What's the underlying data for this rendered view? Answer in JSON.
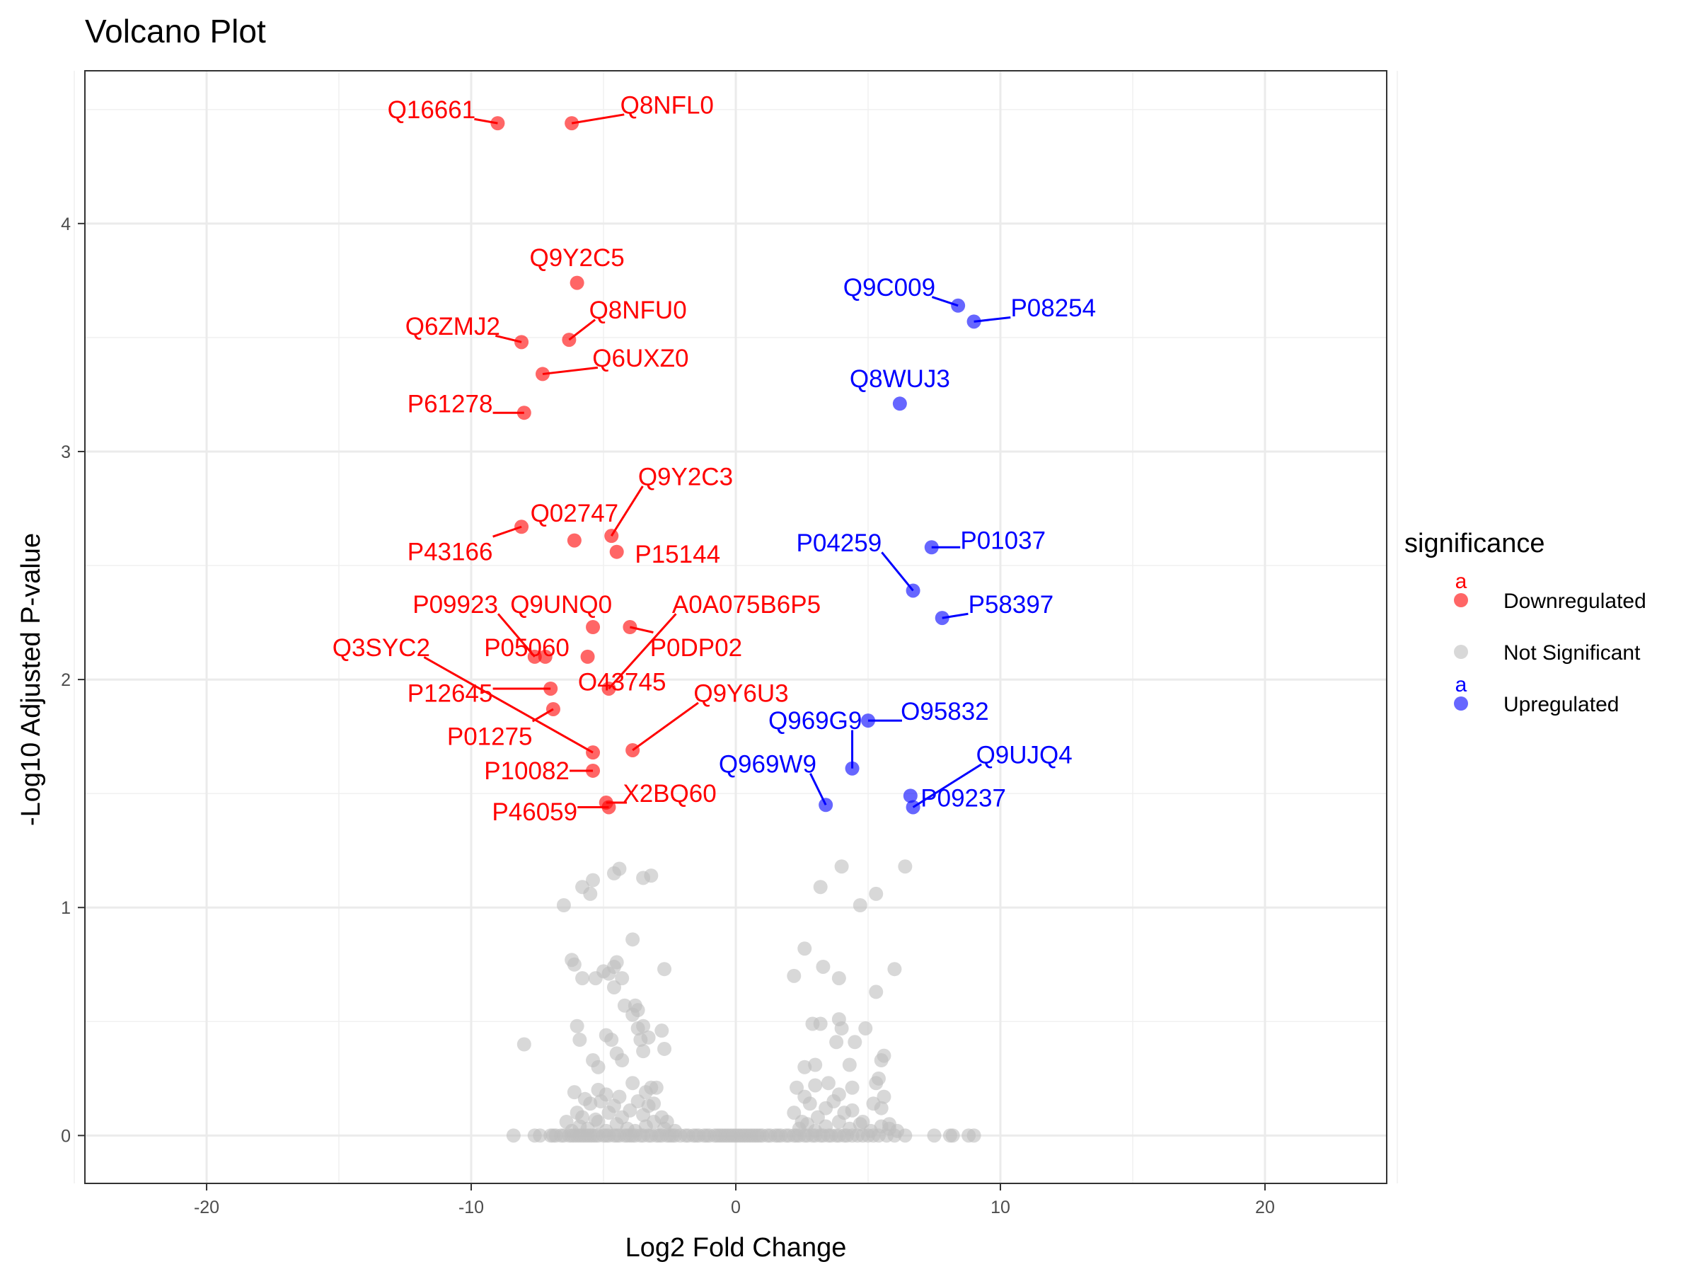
{
  "chart_data": {
    "type": "scatter",
    "title": "Volcano Plot",
    "xlabel": "Log2 Fold Change",
    "ylabel": "-Log10 Adjusted P-value",
    "xlim": [
      -24.6,
      24.6
    ],
    "ylim": [
      -0.21,
      4.67
    ],
    "x_ticks": [
      -20,
      -10,
      0,
      10,
      20
    ],
    "x_tick_labels": [
      "-20",
      "-10",
      "0",
      "10",
      "20"
    ],
    "y_ticks": [
      0,
      1,
      2,
      3,
      4
    ],
    "y_tick_labels": [
      "0",
      "1",
      "2",
      "3",
      "4"
    ],
    "grid": true,
    "legend": {
      "title": "significance",
      "position": "right",
      "key_glyph": "a",
      "entries": [
        {
          "label": "Downregulated",
          "color": "#FF0000",
          "show_text_key": true
        },
        {
          "label": "Not Significant",
          "color": "#BEBEBE",
          "show_text_key": false
        },
        {
          "label": "Upregulated",
          "color": "#0000FF",
          "show_text_key": true
        }
      ]
    },
    "colors": {
      "Downregulated": "#FF0000",
      "Not Significant": "#BEBEBE",
      "Upregulated": "#0000FF",
      "label_line": "#FF0000"
    },
    "labeled_points": [
      {
        "id": "Q16661",
        "x": -9.0,
        "y": 4.44,
        "group": "Downregulated",
        "lx": -11.5,
        "ly": 4.5
      },
      {
        "id": "Q8NFL0",
        "x": -6.2,
        "y": 4.44,
        "group": "Downregulated",
        "lx": -2.6,
        "ly": 4.52
      },
      {
        "id": "Q9Y2C5",
        "x": -6.0,
        "y": 3.74,
        "group": "Downregulated",
        "lx": -6.0,
        "ly": 3.85
      },
      {
        "id": "Q6ZMJ2",
        "x": -8.1,
        "y": 3.48,
        "group": "Downregulated",
        "lx": -10.7,
        "ly": 3.55
      },
      {
        "id": "Q8NFU0",
        "x": -6.3,
        "y": 3.49,
        "group": "Downregulated",
        "lx": -3.7,
        "ly": 3.62
      },
      {
        "id": "Q6UXZ0",
        "x": -7.3,
        "y": 3.34,
        "group": "Downregulated",
        "lx": -3.6,
        "ly": 3.41
      },
      {
        "id": "P61278",
        "x": -8.0,
        "y": 3.17,
        "group": "Downregulated",
        "lx": -10.8,
        "ly": 3.21
      },
      {
        "id": "Q9Y2C3",
        "x": -4.7,
        "y": 2.63,
        "group": "Downregulated",
        "lx": -1.9,
        "ly": 2.89
      },
      {
        "id": "Q02747",
        "x": -6.1,
        "y": 2.61,
        "group": "Downregulated",
        "lx": -6.1,
        "ly": 2.73
      },
      {
        "id": "P43166",
        "x": -8.1,
        "y": 2.67,
        "group": "Downregulated",
        "lx": -10.8,
        "ly": 2.56
      },
      {
        "id": "P15144",
        "x": -4.5,
        "y": 2.56,
        "group": "Downregulated",
        "lx": -2.2,
        "ly": 2.55
      },
      {
        "id": "P09923",
        "x": -7.6,
        "y": 2.1,
        "group": "Downregulated",
        "lx": -10.6,
        "ly": 2.33
      },
      {
        "id": "Q9UNQ0",
        "x": -5.4,
        "y": 2.23,
        "group": "Downregulated",
        "lx": -6.6,
        "ly": 2.33
      },
      {
        "id": "A0A075B6P5",
        "x": -4.8,
        "y": 1.96,
        "group": "Downregulated",
        "lx": 0.4,
        "ly": 2.33
      },
      {
        "id": "P0DP02",
        "x": -4.0,
        "y": 2.23,
        "group": "Downregulated",
        "lx": -1.5,
        "ly": 2.14
      },
      {
        "id": "P05060",
        "x": -7.2,
        "y": 2.1,
        "group": "Downregulated",
        "lx": -7.9,
        "ly": 2.14
      },
      {
        "id": "Q3SYC2",
        "x": -5.4,
        "y": 1.68,
        "group": "Downregulated",
        "lx": -13.4,
        "ly": 2.14
      },
      {
        "id": "O43745",
        "x": -5.6,
        "y": 2.1,
        "group": "Downregulated",
        "lx": -4.3,
        "ly": 1.99
      },
      {
        "id": "P12645",
        "x": -7.0,
        "y": 1.96,
        "group": "Downregulated",
        "lx": -10.8,
        "ly": 1.94
      },
      {
        "id": "Q9Y6U3",
        "x": -3.9,
        "y": 1.69,
        "group": "Downregulated",
        "lx": 0.2,
        "ly": 1.94
      },
      {
        "id": "P01275",
        "x": -6.9,
        "y": 1.87,
        "group": "Downregulated",
        "lx": -9.3,
        "ly": 1.75
      },
      {
        "id": "P10082",
        "x": -5.4,
        "y": 1.6,
        "group": "Downregulated",
        "lx": -7.9,
        "ly": 1.6
      },
      {
        "id": "X2BQ60",
        "x": -4.9,
        "y": 1.46,
        "group": "Downregulated",
        "lx": -2.5,
        "ly": 1.5
      },
      {
        "id": "P46059",
        "x": -4.8,
        "y": 1.44,
        "group": "Downregulated",
        "lx": -7.6,
        "ly": 1.42
      },
      {
        "id": "Q9C009",
        "x": 8.4,
        "y": 3.64,
        "group": "Upregulated",
        "lx": 5.8,
        "ly": 3.72
      },
      {
        "id": "P08254",
        "x": 9.0,
        "y": 3.57,
        "group": "Upregulated",
        "lx": 12.0,
        "ly": 3.63
      },
      {
        "id": "Q8WUJ3",
        "x": 6.2,
        "y": 3.21,
        "group": "Upregulated",
        "lx": 6.2,
        "ly": 3.32
      },
      {
        "id": "P04259",
        "x": 6.7,
        "y": 2.39,
        "group": "Upregulated",
        "lx": 3.9,
        "ly": 2.6
      },
      {
        "id": "P01037",
        "x": 7.4,
        "y": 2.58,
        "group": "Upregulated",
        "lx": 10.1,
        "ly": 2.61
      },
      {
        "id": "P58397",
        "x": 7.8,
        "y": 2.27,
        "group": "Upregulated",
        "lx": 10.4,
        "ly": 2.33
      },
      {
        "id": "Q969G9",
        "x": 4.4,
        "y": 1.61,
        "group": "Upregulated",
        "lx": 3.0,
        "ly": 1.82
      },
      {
        "id": "O95832",
        "x": 5.0,
        "y": 1.82,
        "group": "Upregulated",
        "lx": 7.9,
        "ly": 1.86
      },
      {
        "id": "Q969W9",
        "x": 3.4,
        "y": 1.45,
        "group": "Upregulated",
        "lx": 1.2,
        "ly": 1.63
      },
      {
        "id": "Q9UJQ4",
        "x": 6.7,
        "y": 1.44,
        "group": "Upregulated",
        "lx": 10.9,
        "ly": 1.67
      },
      {
        "id": "P09237",
        "x": 6.6,
        "y": 1.49,
        "group": "Upregulated",
        "lx": 8.6,
        "ly": 1.48
      }
    ],
    "ns_points": [
      [
        -8.4,
        0
      ],
      [
        -7.6,
        0
      ],
      [
        -7.4,
        0
      ],
      [
        -7.0,
        0
      ],
      [
        -6.9,
        0
      ],
      [
        -6.8,
        0
      ],
      [
        -6.6,
        0
      ],
      [
        -6.5,
        0
      ],
      [
        -6.3,
        0
      ],
      [
        -6.2,
        0
      ],
      [
        -6.1,
        0
      ],
      [
        -6.0,
        0
      ],
      [
        -5.9,
        0
      ],
      [
        -5.8,
        0
      ],
      [
        -5.7,
        0
      ],
      [
        -5.6,
        0
      ],
      [
        -5.5,
        0
      ],
      [
        -5.4,
        0
      ],
      [
        -5.3,
        0
      ],
      [
        -5.2,
        0
      ],
      [
        -5.0,
        0
      ],
      [
        -4.9,
        0
      ],
      [
        -4.8,
        0
      ],
      [
        -4.6,
        0
      ],
      [
        -4.5,
        0
      ],
      [
        -4.4,
        0
      ],
      [
        -4.2,
        0
      ],
      [
        -4.1,
        0
      ],
      [
        -4.0,
        0
      ],
      [
        -3.9,
        0
      ],
      [
        -3.8,
        0
      ],
      [
        -3.6,
        0
      ],
      [
        -3.5,
        0
      ],
      [
        -3.3,
        0
      ],
      [
        -3.2,
        0
      ],
      [
        -3.0,
        0
      ],
      [
        -2.9,
        0
      ],
      [
        -2.8,
        0
      ],
      [
        -2.6,
        0
      ],
      [
        -2.5,
        0
      ],
      [
        -2.4,
        0
      ],
      [
        -2.3,
        0
      ],
      [
        -2.1,
        0
      ],
      [
        -1.9,
        0
      ],
      [
        -1.8,
        0
      ],
      [
        -1.6,
        0
      ],
      [
        -1.5,
        0
      ],
      [
        -1.4,
        0
      ],
      [
        -1.2,
        0
      ],
      [
        -1.1,
        0
      ],
      [
        -1.0,
        0
      ],
      [
        -0.8,
        0
      ],
      [
        -0.7,
        0
      ],
      [
        -0.6,
        0
      ],
      [
        -0.5,
        0
      ],
      [
        -0.4,
        0
      ],
      [
        -0.3,
        0
      ],
      [
        -0.2,
        0
      ],
      [
        -0.1,
        0
      ],
      [
        0.0,
        0
      ],
      [
        0.1,
        0
      ],
      [
        0.2,
        0
      ],
      [
        0.3,
        0
      ],
      [
        0.4,
        0
      ],
      [
        0.5,
        0
      ],
      [
        0.6,
        0
      ],
      [
        0.7,
        0
      ],
      [
        0.8,
        0
      ],
      [
        0.9,
        0
      ],
      [
        1.0,
        0
      ],
      [
        1.2,
        0
      ],
      [
        1.3,
        0
      ],
      [
        1.5,
        0
      ],
      [
        1.6,
        0
      ],
      [
        1.7,
        0
      ],
      [
        1.9,
        0
      ],
      [
        2.0,
        0
      ],
      [
        2.2,
        0
      ],
      [
        2.3,
        0
      ],
      [
        2.4,
        0
      ],
      [
        2.6,
        0
      ],
      [
        2.7,
        0
      ],
      [
        2.9,
        0
      ],
      [
        3.0,
        0
      ],
      [
        3.2,
        0
      ],
      [
        3.3,
        0
      ],
      [
        3.5,
        0
      ],
      [
        3.6,
        0
      ],
      [
        3.8,
        0
      ],
      [
        3.9,
        0
      ],
      [
        4.1,
        0
      ],
      [
        4.2,
        0
      ],
      [
        4.4,
        0
      ],
      [
        4.6,
        0
      ],
      [
        4.8,
        0
      ],
      [
        5.0,
        0
      ],
      [
        5.2,
        0
      ],
      [
        5.4,
        0
      ],
      [
        5.7,
        0
      ],
      [
        6.0,
        0
      ],
      [
        6.4,
        0
      ],
      [
        7.5,
        0
      ],
      [
        8.1,
        0
      ],
      [
        8.2,
        0
      ],
      [
        8.8,
        0
      ],
      [
        9.0,
        0
      ],
      [
        -6.2,
        0.02
      ],
      [
        -5.9,
        0.04
      ],
      [
        -5.6,
        0.03
      ],
      [
        -5.2,
        0.06
      ],
      [
        -4.9,
        0.02
      ],
      [
        -4.5,
        0.05
      ],
      [
        -4.1,
        0.03
      ],
      [
        -3.8,
        0.02
      ],
      [
        -3.4,
        0.04
      ],
      [
        -3.1,
        0.06
      ],
      [
        -2.7,
        0.03
      ],
      [
        -2.3,
        0.02
      ],
      [
        2.4,
        0.03
      ],
      [
        2.7,
        0.05
      ],
      [
        3.0,
        0.02
      ],
      [
        3.4,
        0.04
      ],
      [
        3.9,
        0.06
      ],
      [
        4.3,
        0.03
      ],
      [
        4.7,
        0.05
      ],
      [
        5.1,
        0.02
      ],
      [
        5.5,
        0.04
      ],
      [
        5.8,
        0.03
      ],
      [
        6.1,
        0.02
      ],
      [
        -6.4,
        0.06
      ],
      [
        -6.0,
        0.1
      ],
      [
        -5.8,
        0.08
      ],
      [
        -5.5,
        0.14
      ],
      [
        -5.3,
        0.07
      ],
      [
        -5.1,
        0.15
      ],
      [
        -4.8,
        0.1
      ],
      [
        -4.6,
        0.13
      ],
      [
        -4.3,
        0.08
      ],
      [
        -4.0,
        0.11
      ],
      [
        -3.7,
        0.15
      ],
      [
        -3.5,
        0.09
      ],
      [
        -3.3,
        0.13
      ],
      [
        -3.1,
        0.14
      ],
      [
        -2.8,
        0.08
      ],
      [
        -2.6,
        0.06
      ],
      [
        2.2,
        0.1
      ],
      [
        2.5,
        0.06
      ],
      [
        2.8,
        0.14
      ],
      [
        3.1,
        0.08
      ],
      [
        3.4,
        0.12
      ],
      [
        3.7,
        0.15
      ],
      [
        4.1,
        0.1
      ],
      [
        4.4,
        0.11
      ],
      [
        4.8,
        0.06
      ],
      [
        5.2,
        0.14
      ],
      [
        5.5,
        0.12
      ],
      [
        5.8,
        0.05
      ],
      [
        -6.1,
        0.19
      ],
      [
        -5.7,
        0.16
      ],
      [
        -5.2,
        0.2
      ],
      [
        -4.9,
        0.18
      ],
      [
        -4.4,
        0.17
      ],
      [
        -3.9,
        0.23
      ],
      [
        -3.4,
        0.19
      ],
      [
        -3.0,
        0.21
      ],
      [
        2.3,
        0.21
      ],
      [
        2.6,
        0.17
      ],
      [
        3.0,
        0.22
      ],
      [
        3.5,
        0.23
      ],
      [
        3.9,
        0.18
      ],
      [
        4.4,
        0.21
      ],
      [
        5.3,
        0.23
      ],
      [
        5.6,
        0.17
      ],
      [
        -8.0,
        0.4
      ],
      [
        -6.0,
        0.48
      ],
      [
        -5.9,
        0.42
      ],
      [
        -5.4,
        0.33
      ],
      [
        -5.2,
        0.3
      ],
      [
        -4.9,
        0.44
      ],
      [
        -4.7,
        0.42
      ],
      [
        -4.5,
        0.36
      ],
      [
        -4.3,
        0.33
      ],
      [
        -3.9,
        0.53
      ],
      [
        -3.7,
        0.47
      ],
      [
        -3.6,
        0.42
      ],
      [
        -3.5,
        0.37
      ],
      [
        -3.5,
        0.48
      ],
      [
        -3.3,
        0.43
      ],
      [
        -2.8,
        0.46
      ],
      [
        -2.7,
        0.38
      ],
      [
        -3.2,
        0.21
      ],
      [
        2.9,
        0.49
      ],
      [
        3.2,
        0.49
      ],
      [
        3.0,
        0.31
      ],
      [
        3.9,
        0.51
      ],
      [
        4.0,
        0.47
      ],
      [
        3.8,
        0.41
      ],
      [
        4.5,
        0.41
      ],
      [
        4.3,
        0.31
      ],
      [
        4.9,
        0.47
      ],
      [
        5.6,
        0.35
      ],
      [
        5.5,
        0.33
      ],
      [
        5.4,
        0.25
      ],
      [
        2.6,
        0.3
      ],
      [
        -6.2,
        0.77
      ],
      [
        -6.1,
        0.75
      ],
      [
        -5.8,
        0.69
      ],
      [
        -5.3,
        0.69
      ],
      [
        -5.0,
        0.72
      ],
      [
        -4.8,
        0.71
      ],
      [
        -4.6,
        0.74
      ],
      [
        -4.5,
        0.76
      ],
      [
        -4.3,
        0.69
      ],
      [
        -4.6,
        0.65
      ],
      [
        -3.9,
        0.86
      ],
      [
        -3.8,
        0.57
      ],
      [
        -3.7,
        0.55
      ],
      [
        -4.2,
        0.57
      ],
      [
        -2.7,
        0.73
      ],
      [
        3.3,
        0.74
      ],
      [
        3.9,
        0.69
      ],
      [
        5.3,
        0.63
      ],
      [
        6.0,
        0.73
      ],
      [
        2.2,
        0.7
      ],
      [
        2.6,
        0.82
      ],
      [
        -6.5,
        1.01
      ],
      [
        -5.8,
        1.09
      ],
      [
        -5.5,
        1.06
      ],
      [
        -5.4,
        1.12
      ],
      [
        -4.4,
        1.17
      ],
      [
        -4.6,
        1.15
      ],
      [
        -3.5,
        1.13
      ],
      [
        -3.2,
        1.14
      ],
      [
        3.2,
        1.09
      ],
      [
        4.0,
        1.18
      ],
      [
        4.7,
        1.01
      ],
      [
        5.3,
        1.06
      ],
      [
        6.4,
        1.18
      ]
    ]
  }
}
